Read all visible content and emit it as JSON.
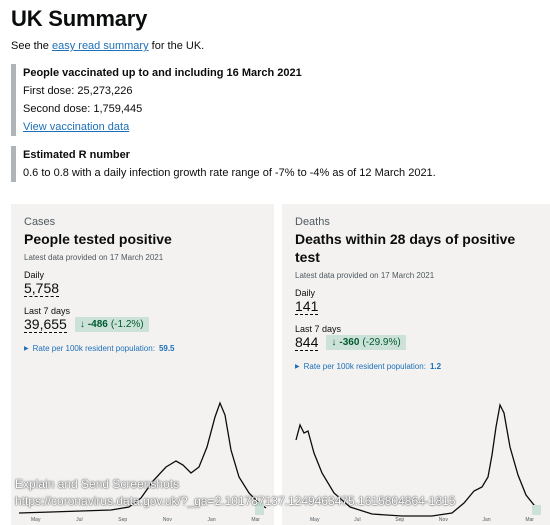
{
  "page": {
    "title": "UK Summary",
    "intro_prefix": "See the",
    "intro_link": "easy read summary",
    "intro_suffix": "for the UK."
  },
  "vaccination": {
    "heading": "People vaccinated up to and including 16 March 2021",
    "first_dose": "First dose: 25,273,226",
    "second_dose": "Second dose: 1,759,445",
    "link": "View vaccination data"
  },
  "r_number": {
    "heading": "Estimated R number",
    "text": "0.6 to 0.8 with a daily infection growth rate range of -7% to -4% as of 12 March 2021."
  },
  "cards": {
    "cases": {
      "caption": "Cases",
      "title": "People tested positive",
      "latest": "Latest data provided on 17 March 2021",
      "daily_label": "Daily",
      "daily_value": "5,758",
      "week_label": "Last 7 days",
      "week_value": "39,655",
      "change_value": "-486",
      "change_pct": "(-1.2%)",
      "rate_label": "Rate per 100k resident population:",
      "rate_value": "59.5",
      "x_ticks": [
        "May",
        "Jul",
        "Sep",
        "Nov",
        "Jan",
        "Mar"
      ]
    },
    "deaths": {
      "caption": "Deaths",
      "title": "Deaths within 28 days of positive test",
      "latest": "Latest data provided on 17 March 2021",
      "daily_label": "Daily",
      "daily_value": "141",
      "week_label": "Last 7 days",
      "week_value": "844",
      "change_value": "-360",
      "change_pct": "(-29.9%)",
      "rate_label": "Rate per 100k resident population:",
      "rate_value": "1.2",
      "x_ticks": [
        "May",
        "Jul",
        "Sep",
        "Nov",
        "Jan",
        "Mar"
      ]
    }
  },
  "overlay": {
    "line1": "Explain and Send Screenshots",
    "line2": "https://coronavirus.data.gov.uk/?_ga=2.101787137.1249463475.1615804864-1815"
  },
  "colors": {
    "link": "#1d70b8",
    "change_bg": "#cce2d8",
    "change_text": "#005a30",
    "card_bg": "#f3f2f1",
    "sparkline": "#0b0c0c",
    "recent_fill": "#cce2d8"
  },
  "icons": {
    "change": "arrow-down-icon",
    "rate": "triangle-right-icon"
  }
}
